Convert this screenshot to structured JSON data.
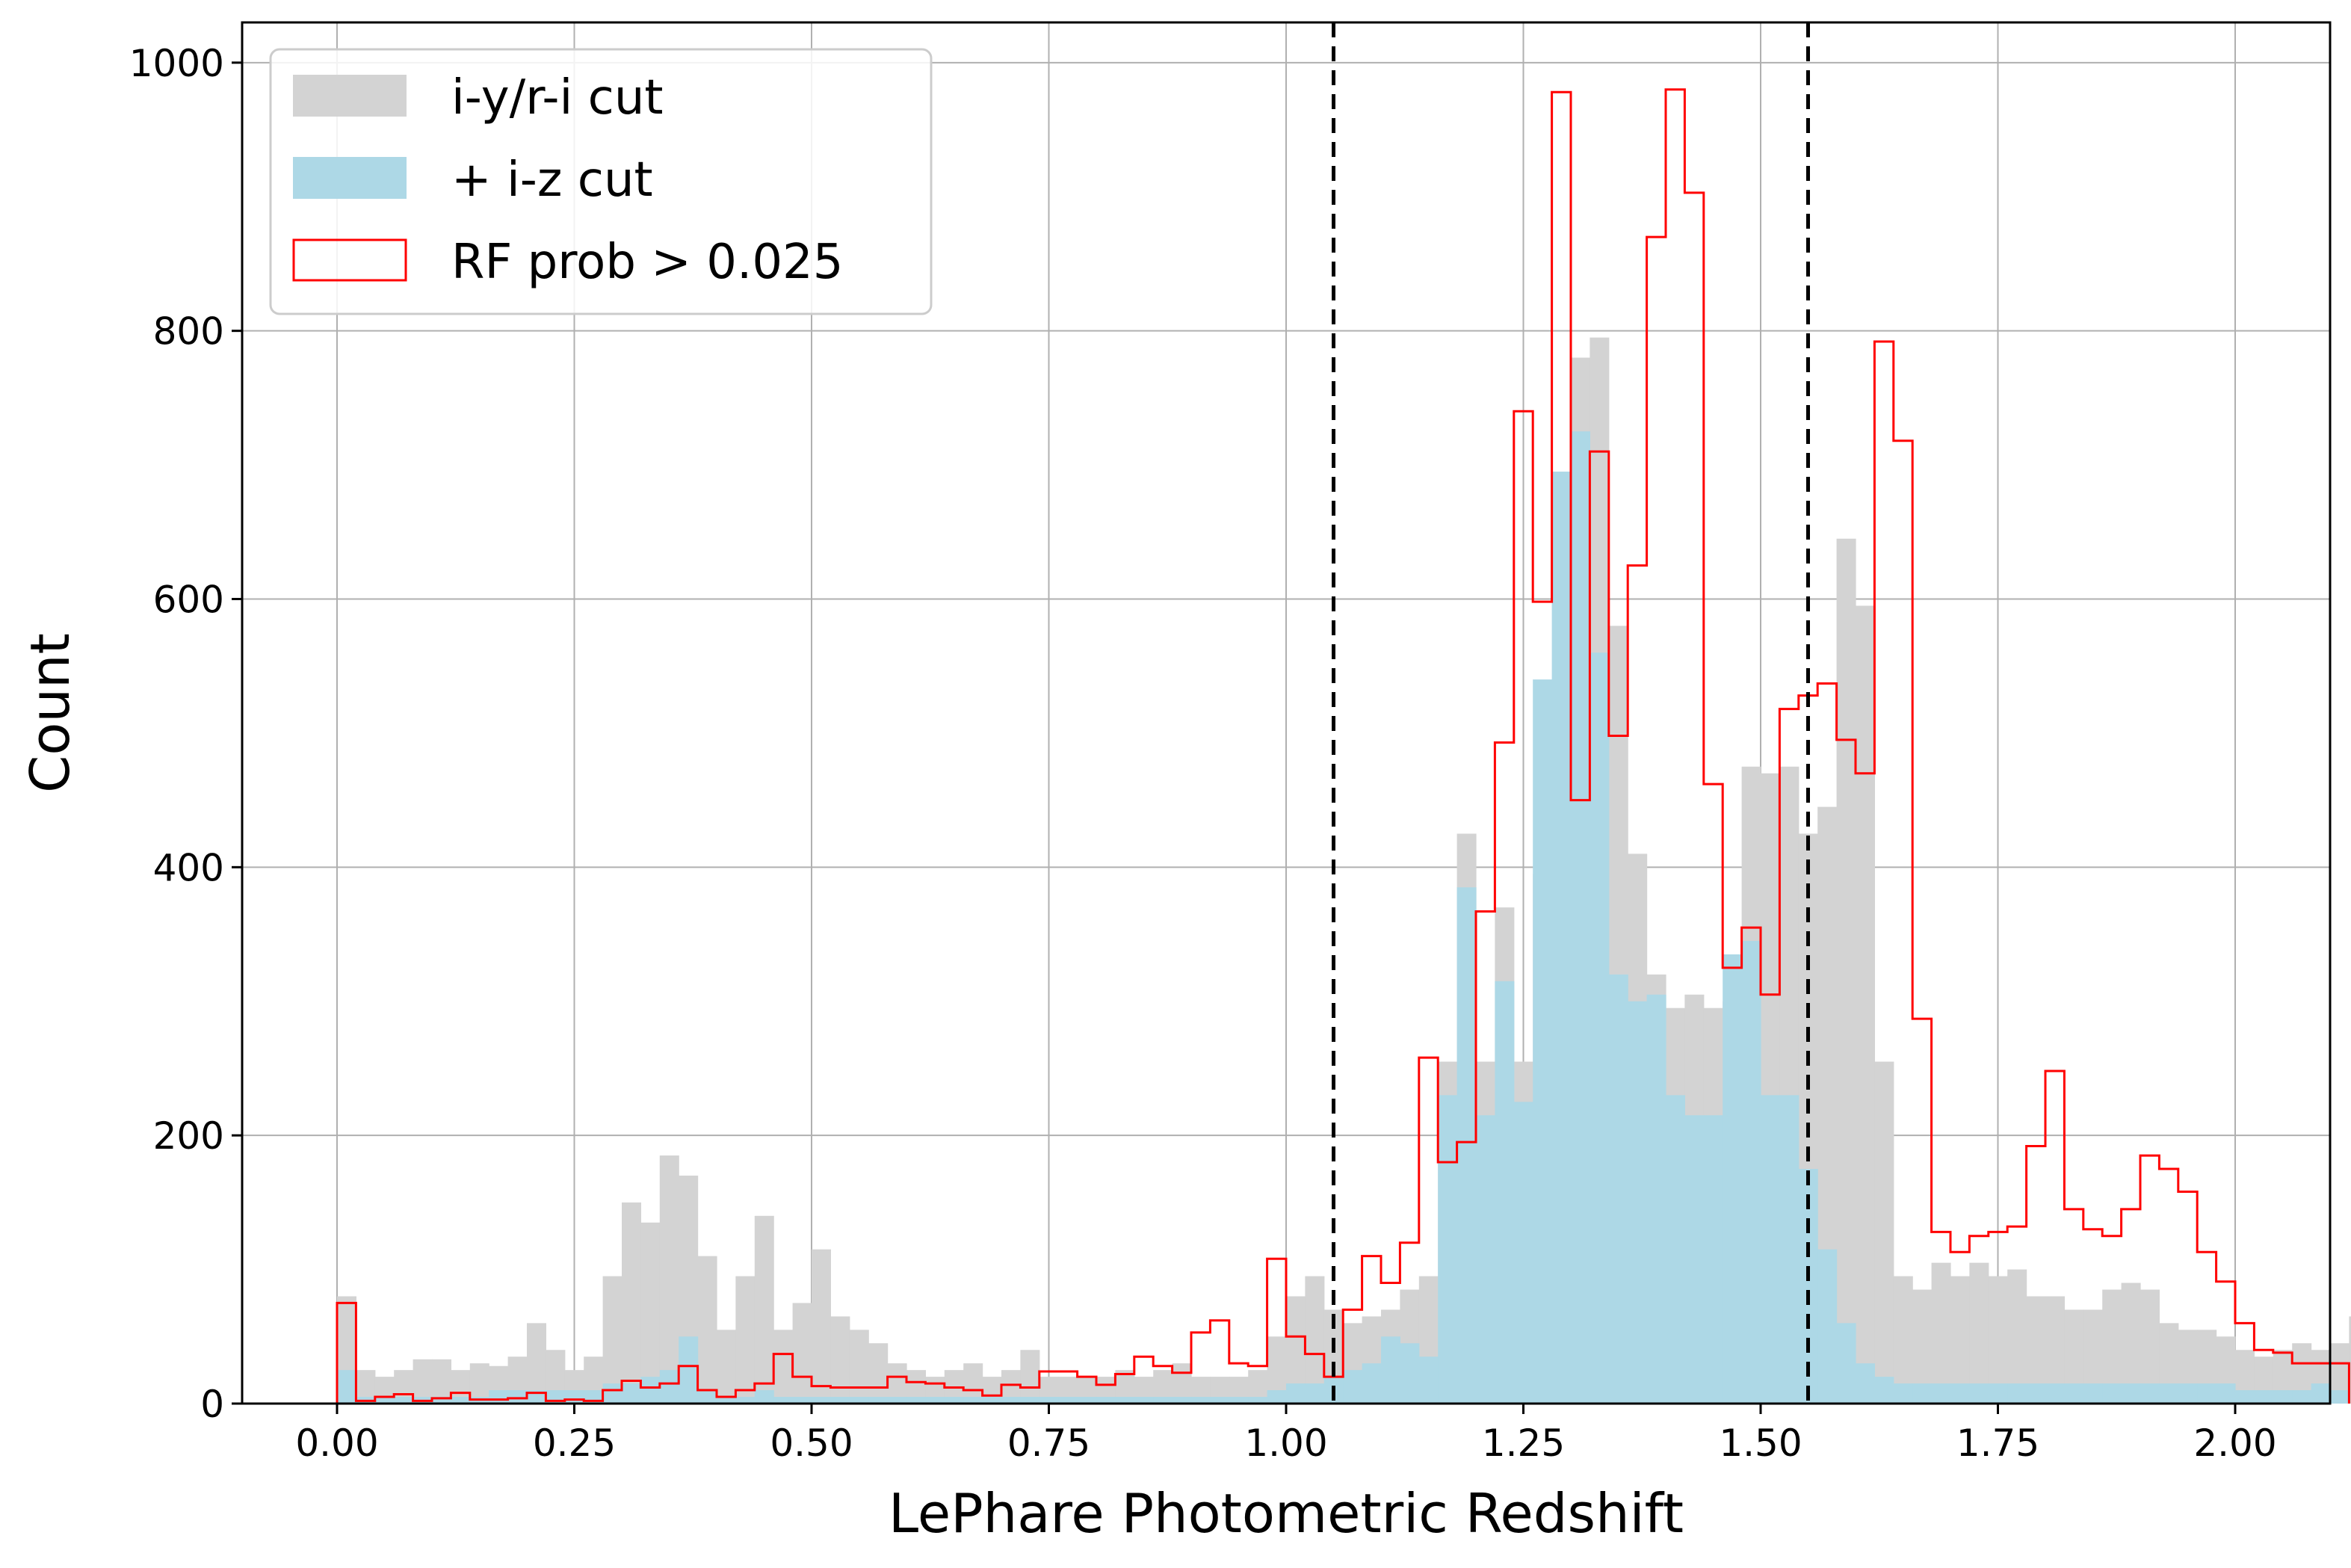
{
  "chart_data": {
    "type": "bar",
    "subtype": "overlaid step histogram",
    "xlabel": "LePhare Photometric Redshift",
    "ylabel": "Count",
    "xlim": [
      -0.1,
      2.1
    ],
    "ylim": [
      0,
      1030
    ],
    "bin_width": 0.02,
    "bin_start": 0.0,
    "x_ticks": [
      "0.00",
      "0.25",
      "0.50",
      "0.75",
      "1.00",
      "1.25",
      "1.50",
      "1.75",
      "2.00"
    ],
    "x_tick_values": [
      0,
      0.25,
      0.5,
      0.75,
      1.0,
      1.25,
      1.5,
      1.75,
      2.0
    ],
    "y_ticks": [
      "0",
      "200",
      "400",
      "600",
      "800",
      "1000"
    ],
    "y_tick_values": [
      0,
      200,
      400,
      600,
      800,
      1000
    ],
    "grid": true,
    "legend_position": "top-left",
    "vlines": [
      1.05,
      1.55
    ],
    "vline_style": "dashed black",
    "series": [
      {
        "name": "i-y/r-i cut",
        "style": "filled",
        "color": "#d3d3d3",
        "values": [
          80,
          25,
          20,
          25,
          33,
          33,
          25,
          30,
          28,
          35,
          60,
          40,
          25,
          35,
          95,
          150,
          135,
          185,
          170,
          110,
          55,
          95,
          140,
          55,
          75,
          115,
          65,
          55,
          45,
          30,
          25,
          20,
          25,
          30,
          20,
          25,
          40,
          20,
          20,
          20,
          20,
          25,
          20,
          25,
          30,
          20,
          20,
          20,
          25,
          50,
          80,
          95,
          70,
          60,
          65,
          70,
          85,
          95,
          255,
          425,
          255,
          370,
          255,
          395,
          525,
          780,
          795,
          580,
          410,
          320,
          295,
          305,
          295,
          300,
          475,
          470,
          475,
          425,
          445,
          645,
          595,
          255,
          95,
          85,
          105,
          95,
          105,
          95,
          100,
          80,
          80,
          70,
          70,
          85,
          90,
          85,
          60,
          55,
          55,
          50,
          40,
          35,
          40,
          45,
          40,
          45,
          65
        ]
      },
      {
        "name": "+ i-z cut",
        "style": "filled",
        "color": "#add8e6",
        "values": [
          25,
          5,
          5,
          5,
          5,
          5,
          5,
          5,
          10,
          10,
          10,
          10,
          10,
          10,
          15,
          15,
          20,
          25,
          50,
          10,
          5,
          5,
          10,
          5,
          5,
          5,
          5,
          5,
          5,
          5,
          5,
          5,
          5,
          5,
          5,
          5,
          5,
          5,
          5,
          5,
          5,
          5,
          5,
          5,
          5,
          5,
          5,
          5,
          5,
          10,
          15,
          15,
          20,
          25,
          30,
          50,
          45,
          35,
          230,
          385,
          215,
          315,
          225,
          540,
          695,
          725,
          560,
          320,
          300,
          305,
          230,
          215,
          215,
          335,
          345,
          230,
          230,
          175,
          115,
          60,
          30,
          20,
          15,
          15,
          15,
          15,
          15,
          15,
          15,
          15,
          15,
          15,
          15,
          15,
          15,
          15,
          15,
          15,
          15,
          15,
          10,
          10,
          10,
          10,
          15,
          10
        ]
      },
      {
        "name": "RF prob > 0.025",
        "style": "step",
        "color": "#ff0000",
        "values": [
          75,
          2,
          5,
          7,
          2,
          4,
          8,
          3,
          3,
          4,
          8,
          2,
          3,
          2,
          10,
          17,
          12,
          15,
          28,
          10,
          5,
          10,
          15,
          37,
          20,
          13,
          12,
          12,
          12,
          20,
          16,
          15,
          12,
          10,
          6,
          14,
          12,
          24,
          24,
          20,
          14,
          22,
          35,
          28,
          23,
          53,
          62,
          30,
          28,
          108,
          50,
          37,
          20,
          70,
          110,
          90,
          120,
          258,
          180,
          195,
          367,
          493,
          740,
          598,
          978,
          450,
          710,
          498,
          625,
          870,
          980,
          903,
          462,
          325,
          355,
          305,
          518,
          528,
          537,
          495,
          470,
          792,
          718,
          287,
          128,
          113,
          125,
          128,
          132,
          192,
          248,
          145,
          130,
          125,
          145,
          185,
          175,
          158,
          113,
          91,
          60,
          40,
          38,
          30,
          30,
          30
        ]
      }
    ]
  }
}
